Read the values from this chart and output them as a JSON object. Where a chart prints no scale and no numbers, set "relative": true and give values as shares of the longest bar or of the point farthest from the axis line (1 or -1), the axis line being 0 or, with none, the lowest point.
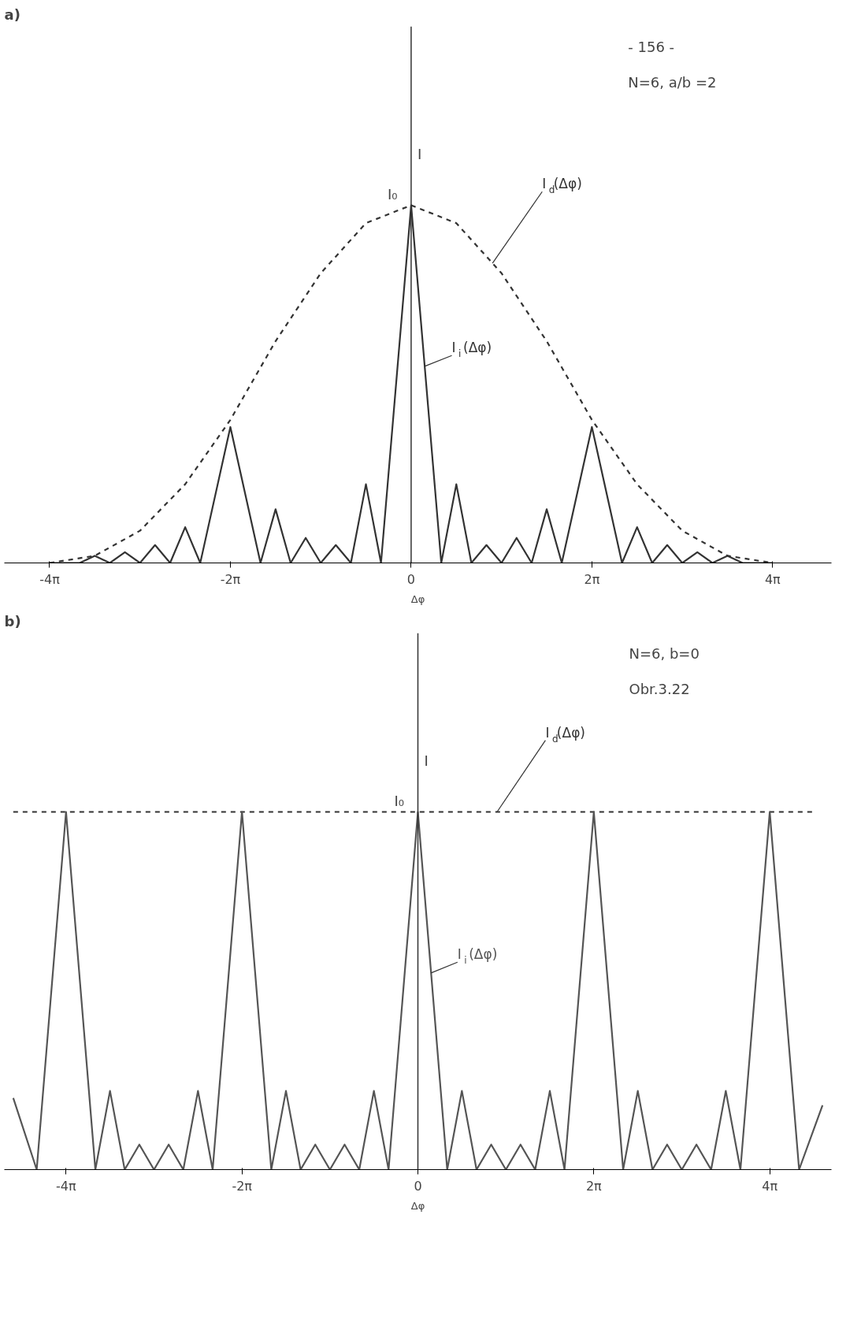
{
  "chart_data": [
    {
      "type": "line",
      "title": "a)",
      "xlabel": "Δφ",
      "ylabel": "I",
      "relative": true,
      "xlim": [
        -14.14,
        14.61
      ],
      "xticks": [
        {
          "value": -12.566,
          "label": "-4π"
        },
        {
          "value": -6.283,
          "label": "-2π"
        },
        0,
        {
          "value": 6.283,
          "label": "2π"
        },
        {
          "value": 12.566,
          "label": "4π"
        }
      ],
      "series": [
        {
          "name": "I$_{d}$(Δφ)",
          "color": "#333333",
          "line_style": "dashed",
          "x": [
            -12.566,
            -10.996,
            -9.425,
            -7.854,
            -6.283,
            -4.712,
            -3.142,
            -1.571,
            0,
            1.571,
            3.142,
            4.712,
            6.283,
            7.854,
            9.425,
            10.996,
            12.566
          ],
          "values": [
            0,
            0.02,
            0.09,
            0.22,
            0.4,
            0.62,
            0.81,
            0.95,
            1,
            0.95,
            0.81,
            0.62,
            0.4,
            0.22,
            0.09,
            0.02,
            0
          ]
        },
        {
          "name": "I$_{i}$(Δφ)",
          "color": "#333333",
          "line_style": "solid",
          "x": [
            -12.566,
            -11.519,
            -10.996,
            -10.472,
            -9.948,
            -9.425,
            -8.901,
            -8.378,
            -7.854,
            -7.33,
            -6.283,
            -5.236,
            -4.712,
            -4.189,
            -3.665,
            -3.142,
            -2.618,
            -2.094,
            -1.571,
            -1.047,
            0,
            1.047,
            1.571,
            2.094,
            2.618,
            3.142,
            3.665,
            4.189,
            4.712,
            5.236,
            6.283,
            7.33,
            7.854,
            8.378,
            8.901,
            9.425,
            9.948,
            10.472,
            10.996,
            11.519,
            12.566
          ],
          "values": [
            0,
            0,
            0.02,
            0,
            0.03,
            0,
            0.05,
            0,
            0.1,
            0,
            0.38,
            0,
            0.15,
            0,
            0.07,
            0,
            0.05,
            0,
            0.22,
            0,
            1,
            0,
            0.22,
            0,
            0.05,
            0,
            0.07,
            0,
            0.15,
            0,
            0.38,
            0,
            0.1,
            0,
            0.05,
            0,
            0.03,
            0,
            0.02,
            0,
            0
          ]
        }
      ],
      "ref_lines": [
        {
          "axis": "x",
          "value": 0,
          "color": "#333333"
        }
      ],
      "annotations": [
        "- 156 -",
        "N=6, a/b =2",
        {
          "text": "I₀",
          "x": 0,
          "y": 1
        }
      ]
    },
    {
      "type": "line",
      "title": "b)",
      "xlabel": "Δφ",
      "ylabel": "I",
      "relative": true,
      "xlim": [
        -14.77,
        14.77
      ],
      "xticks": [
        {
          "value": -12.566,
          "label": "-4π"
        },
        {
          "value": -6.283,
          "label": "-2π"
        },
        0,
        {
          "value": 6.283,
          "label": "2π"
        },
        {
          "value": 12.566,
          "label": "4π"
        }
      ],
      "series": [
        {
          "name": "I$_{d}$(Δφ)",
          "color": "#333333",
          "line_style": "dashed",
          "x": [
            -14.451,
            14.137
          ],
          "values": [
            1,
            1
          ]
        },
        {
          "name": "I$_{i}$(Δφ)",
          "color": "#555555",
          "line_style": "solid",
          "x": [
            -14.451,
            -13.614,
            -12.566,
            -11.519,
            -10.996,
            -10.472,
            -9.948,
            -9.425,
            -8.901,
            -8.378,
            -7.854,
            -7.33,
            -6.283,
            -5.236,
            -4.712,
            -4.189,
            -3.665,
            -3.142,
            -2.618,
            -2.094,
            -1.571,
            -1.047,
            0,
            1.047,
            1.571,
            2.094,
            2.618,
            3.142,
            3.665,
            4.189,
            4.712,
            5.236,
            6.283,
            7.33,
            7.854,
            8.378,
            8.901,
            9.425,
            9.948,
            10.472,
            10.996,
            11.519,
            12.566,
            13.614,
            14.451
          ],
          "values": [
            0.2,
            0,
            1,
            0,
            0.22,
            0,
            0.07,
            0,
            0.07,
            0,
            0.22,
            0,
            1,
            0,
            0.22,
            0,
            0.07,
            0,
            0.07,
            0,
            0.22,
            0,
            1,
            0,
            0.22,
            0,
            0.07,
            0,
            0.07,
            0,
            0.22,
            0,
            1,
            0,
            0.22,
            0,
            0.07,
            0,
            0.07,
            0,
            0.22,
            0,
            1,
            0,
            0.18
          ]
        }
      ],
      "ref_lines": [
        {
          "axis": "x",
          "value": 0,
          "color": "#333333"
        }
      ],
      "annotations": [
        "N=6, b=0",
        "Obr.3.22",
        {
          "text": "I₀",
          "x": 0,
          "y": 1
        }
      ]
    }
  ]
}
